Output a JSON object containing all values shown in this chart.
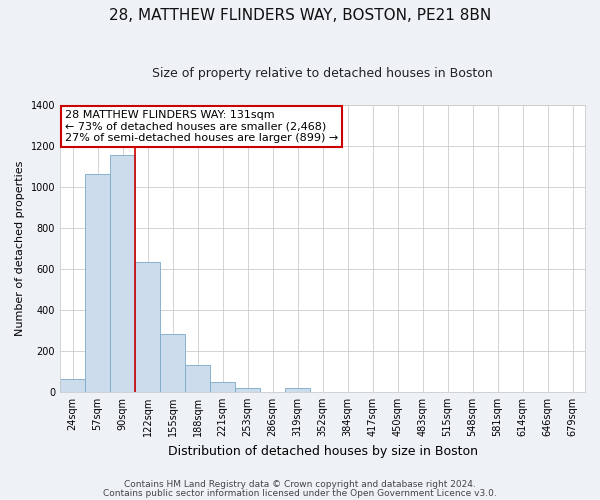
{
  "title": "28, MATTHEW FLINDERS WAY, BOSTON, PE21 8BN",
  "subtitle": "Size of property relative to detached houses in Boston",
  "xlabel": "Distribution of detached houses by size in Boston",
  "ylabel": "Number of detached properties",
  "footer_lines": [
    "Contains HM Land Registry data © Crown copyright and database right 2024.",
    "Contains public sector information licensed under the Open Government Licence v3.0."
  ],
  "bin_labels": [
    "24sqm",
    "57sqm",
    "90sqm",
    "122sqm",
    "155sqm",
    "188sqm",
    "221sqm",
    "253sqm",
    "286sqm",
    "319sqm",
    "352sqm",
    "384sqm",
    "417sqm",
    "450sqm",
    "483sqm",
    "515sqm",
    "548sqm",
    "581sqm",
    "614sqm",
    "646sqm",
    "679sqm"
  ],
  "bar_values": [
    65,
    1065,
    1155,
    635,
    285,
    130,
    47,
    20,
    0,
    20,
    0,
    0,
    0,
    0,
    0,
    0,
    0,
    0,
    0,
    0,
    0
  ],
  "bar_color": "#ccdcec",
  "bar_edgecolor": "#7aaac8",
  "annotation_line_color": "#cc0000",
  "annotation_box_text": "28 MATTHEW FLINDERS WAY: 131sqm\n← 73% of detached houses are smaller (2,468)\n27% of semi-detached houses are larger (899) →",
  "annotation_box_color": "#ffffff",
  "annotation_box_edgecolor": "#cc0000",
  "ylim": [
    0,
    1400
  ],
  "yticks": [
    0,
    200,
    400,
    600,
    800,
    1000,
    1200,
    1400
  ],
  "bg_color": "#eef2f6",
  "plot_bg_color": "#ffffff",
  "grid_color": "#cccccc",
  "title_fontsize": 11,
  "subtitle_fontsize": 9,
  "ylabel_fontsize": 8,
  "xlabel_fontsize": 9,
  "tick_fontsize": 7,
  "ann_fontsize": 8,
  "footer_fontsize": 6.5,
  "red_line_bin_index": 3
}
